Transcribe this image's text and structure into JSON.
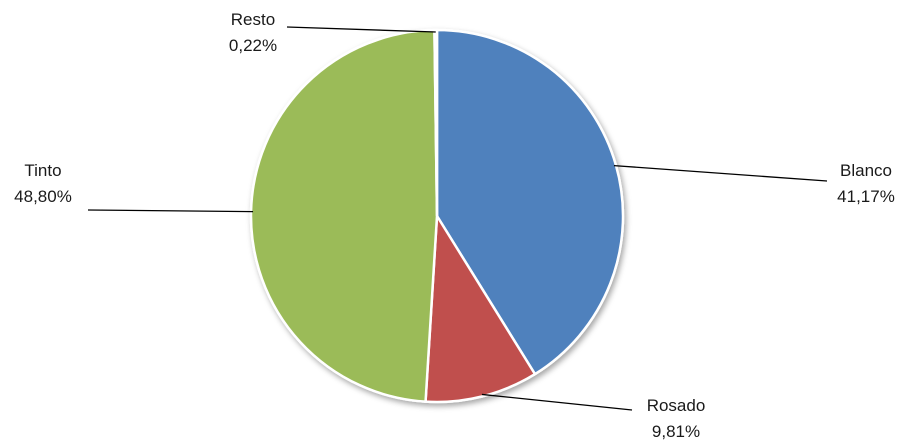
{
  "chart_data": {
    "type": "pie",
    "title": "",
    "slices": [
      {
        "name": "Blanco",
        "value": 41.17,
        "label": "41,17%",
        "color": "#4f81bd"
      },
      {
        "name": "Rosado",
        "value": 9.81,
        "label": "9,81%",
        "color": "#c0504d"
      },
      {
        "name": "Tinto",
        "value": 48.8,
        "label": "48,80%",
        "color": "#9bbb59"
      },
      {
        "name": "Resto",
        "value": 0.22,
        "label": "0,22%",
        "color": "#b8cce4"
      }
    ],
    "legend": "none",
    "data_labels": "outside-with-leader-lines"
  }
}
